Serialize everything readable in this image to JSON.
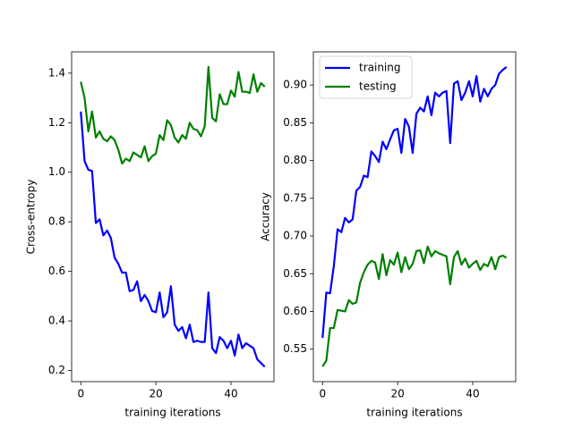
{
  "chart_data": [
    {
      "type": "line",
      "x": [
        0,
        1,
        2,
        3,
        4,
        5,
        6,
        7,
        8,
        9,
        10,
        11,
        12,
        13,
        14,
        15,
        16,
        17,
        18,
        19,
        20,
        21,
        22,
        23,
        24,
        25,
        26,
        27,
        28,
        29,
        30,
        31,
        32,
        33,
        34,
        35,
        36,
        37,
        38,
        39,
        40,
        41,
        42,
        43,
        44,
        45,
        46,
        47,
        48,
        49
      ],
      "series": [
        {
          "name": "training",
          "color": "#0000ff",
          "values": [
            1.245,
            1.045,
            1.01,
            1.005,
            0.795,
            0.81,
            0.745,
            0.765,
            0.735,
            0.655,
            0.63,
            0.595,
            0.595,
            0.52,
            0.525,
            0.56,
            0.48,
            0.505,
            0.48,
            0.44,
            0.435,
            0.515,
            0.415,
            0.435,
            0.54,
            0.385,
            0.36,
            0.375,
            0.33,
            0.385,
            0.315,
            0.32,
            0.315,
            0.315,
            0.515,
            0.29,
            0.27,
            0.335,
            0.32,
            0.29,
            0.32,
            0.26,
            0.345,
            0.29,
            0.31,
            0.3,
            0.29,
            0.245,
            0.23,
            0.215
          ]
        },
        {
          "name": "testing",
          "color": "#008000",
          "values": [
            1.365,
            1.3,
            1.165,
            1.245,
            1.14,
            1.165,
            1.135,
            1.125,
            1.145,
            1.13,
            1.09,
            1.035,
            1.055,
            1.045,
            1.08,
            1.07,
            1.06,
            1.105,
            1.045,
            1.065,
            1.075,
            1.15,
            1.13,
            1.21,
            1.19,
            1.14,
            1.12,
            1.15,
            1.135,
            1.2,
            1.175,
            1.17,
            1.145,
            1.185,
            1.425,
            1.22,
            1.205,
            1.315,
            1.275,
            1.275,
            1.33,
            1.305,
            1.405,
            1.325,
            1.325,
            1.32,
            1.395,
            1.325,
            1.36,
            1.345
          ]
        }
      ],
      "xlabel": "training iterations",
      "ylabel": "Cross-entropy",
      "xlim": [
        -2.45,
        51.45
      ],
      "xticks": [
        0,
        20,
        40
      ],
      "ylim": [
        0.155,
        1.486
      ],
      "yticks": [
        0.2,
        0.4,
        0.6,
        0.8,
        {
          "value": 1,
          "label": "1.0"
        },
        1.2,
        1.4
      ]
    },
    {
      "type": "line",
      "x": [
        0,
        1,
        2,
        3,
        4,
        5,
        6,
        7,
        8,
        9,
        10,
        11,
        12,
        13,
        14,
        15,
        16,
        17,
        18,
        19,
        20,
        21,
        22,
        23,
        24,
        25,
        26,
        27,
        28,
        29,
        30,
        31,
        32,
        33,
        34,
        35,
        36,
        37,
        38,
        39,
        40,
        41,
        42,
        43,
        44,
        45,
        46,
        47,
        48,
        49
      ],
      "series": [
        {
          "name": "training",
          "color": "#0000ff",
          "values": [
            0.565,
            0.625,
            0.624,
            0.66,
            0.709,
            0.705,
            0.724,
            0.718,
            0.722,
            0.76,
            0.765,
            0.78,
            0.778,
            0.812,
            0.806,
            0.798,
            0.825,
            0.815,
            0.828,
            0.84,
            0.842,
            0.81,
            0.855,
            0.845,
            0.81,
            0.862,
            0.87,
            0.865,
            0.885,
            0.86,
            0.89,
            0.885,
            0.89,
            0.892,
            0.823,
            0.902,
            0.905,
            0.88,
            0.89,
            0.905,
            0.885,
            0.912,
            0.878,
            0.895,
            0.885,
            0.895,
            0.9,
            0.915,
            0.92,
            0.924
          ]
        },
        {
          "name": "testing",
          "color": "#008000",
          "values": [
            0.527,
            0.535,
            0.578,
            0.578,
            0.602,
            0.601,
            0.6,
            0.615,
            0.61,
            0.612,
            0.638,
            0.652,
            0.662,
            0.667,
            0.665,
            0.643,
            0.676,
            0.648,
            0.668,
            0.662,
            0.678,
            0.652,
            0.672,
            0.656,
            0.663,
            0.68,
            0.681,
            0.664,
            0.686,
            0.673,
            0.68,
            0.677,
            0.675,
            0.673,
            0.636,
            0.672,
            0.68,
            0.662,
            0.67,
            0.658,
            0.663,
            0.667,
            0.655,
            0.663,
            0.66,
            0.672,
            0.656,
            0.672,
            0.674,
            0.671
          ]
        }
      ],
      "xlabel": "training iterations",
      "ylabel": "Accuracy",
      "xlim": [
        -2.45,
        51.45
      ],
      "xticks": [
        0,
        20,
        40
      ],
      "ylim": [
        0.507,
        0.944
      ],
      "yticks": [
        0.55,
        {
          "value": 0.6,
          "label": "0.60"
        },
        0.65,
        {
          "value": 0.7,
          "label": "0.70"
        },
        0.75,
        {
          "value": 0.8,
          "label": "0.80"
        },
        0.85,
        {
          "value": 0.9,
          "label": "0.90"
        }
      ],
      "legend": "upper left"
    }
  ]
}
